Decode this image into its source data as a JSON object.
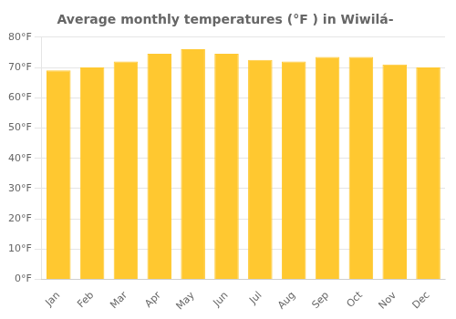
{
  "chart_data": {
    "type": "bar",
    "title": "Average monthly temperatures (°F ) in Wiwilá-",
    "categories": [
      "Jan",
      "Feb",
      "Mar",
      "Apr",
      "May",
      "Jun",
      "Jul",
      "Aug",
      "Sep",
      "Oct",
      "Nov",
      "Dec"
    ],
    "values": [
      69,
      70,
      72,
      74.5,
      76,
      74.5,
      72.5,
      72,
      73.5,
      73.5,
      71,
      70
    ],
    "color": "#FFC830",
    "ylim": [
      0,
      80
    ],
    "yticks": [
      {
        "value": 0,
        "label": "0°F"
      },
      {
        "value": 10,
        "label": "10°F"
      },
      {
        "value": 20,
        "label": "20°F"
      },
      {
        "value": 30,
        "label": "30°F"
      },
      {
        "value": 40,
        "label": "40°F"
      },
      {
        "value": 50,
        "label": "50°F"
      },
      {
        "value": 60,
        "label": "60°F"
      },
      {
        "value": 70,
        "label": "70°F"
      },
      {
        "value": 80,
        "label": "80°F"
      }
    ],
    "grid": true
  }
}
